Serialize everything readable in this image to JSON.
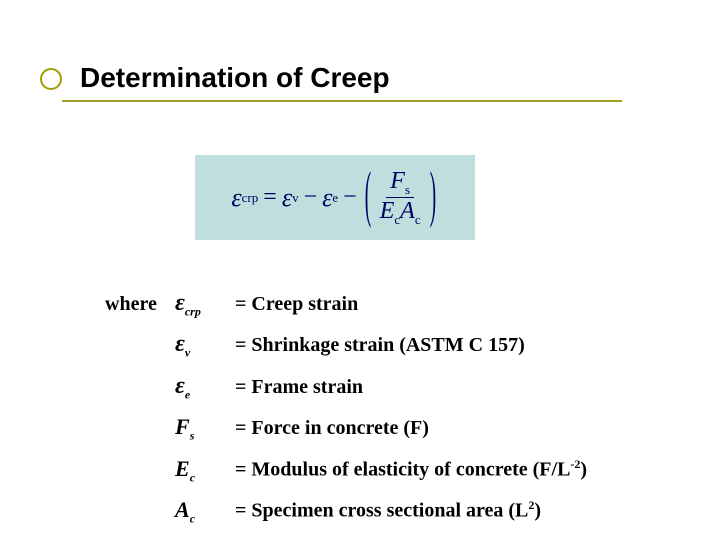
{
  "title": "Determination of Creep",
  "colors": {
    "equation_bg": "#bfdfdf",
    "equation_text": "#000060",
    "accent": "#a0a020"
  },
  "equation": {
    "lhs": {
      "symbol": "ε",
      "sub": "crp"
    },
    "rhs_terms": [
      {
        "symbol": "ε",
        "sub": "v"
      },
      {
        "op": "−",
        "symbol": "ε",
        "sub": "e"
      }
    ],
    "fraction": {
      "num": {
        "sym": "F",
        "sub": "s"
      },
      "den": [
        {
          "sym": "E",
          "sub": "c"
        },
        {
          "sym": "A",
          "sub": "c"
        }
      ]
    }
  },
  "where_label": "where",
  "definitions": [
    {
      "sym": "ε",
      "sub": "crp",
      "eps": true,
      "desc": "= Creep strain"
    },
    {
      "sym": "ε",
      "sub": "v",
      "eps": true,
      "desc": "= Shrinkage strain (ASTM C 157)"
    },
    {
      "sym": "ε",
      "sub": "e",
      "eps": true,
      "desc": "= Frame strain"
    },
    {
      "sym": "F",
      "sub": "s",
      "eps": false,
      "desc": "= Force in concrete (F)"
    },
    {
      "sym": "E",
      "sub": "c",
      "eps": false,
      "desc_html": "= Modulus of elasticity of concrete (F/L<sup>-2</sup>)"
    },
    {
      "sym": "A",
      "sub": "c",
      "eps": false,
      "desc_html": "= Specimen cross sectional area (L<sup>2</sup>)"
    }
  ]
}
